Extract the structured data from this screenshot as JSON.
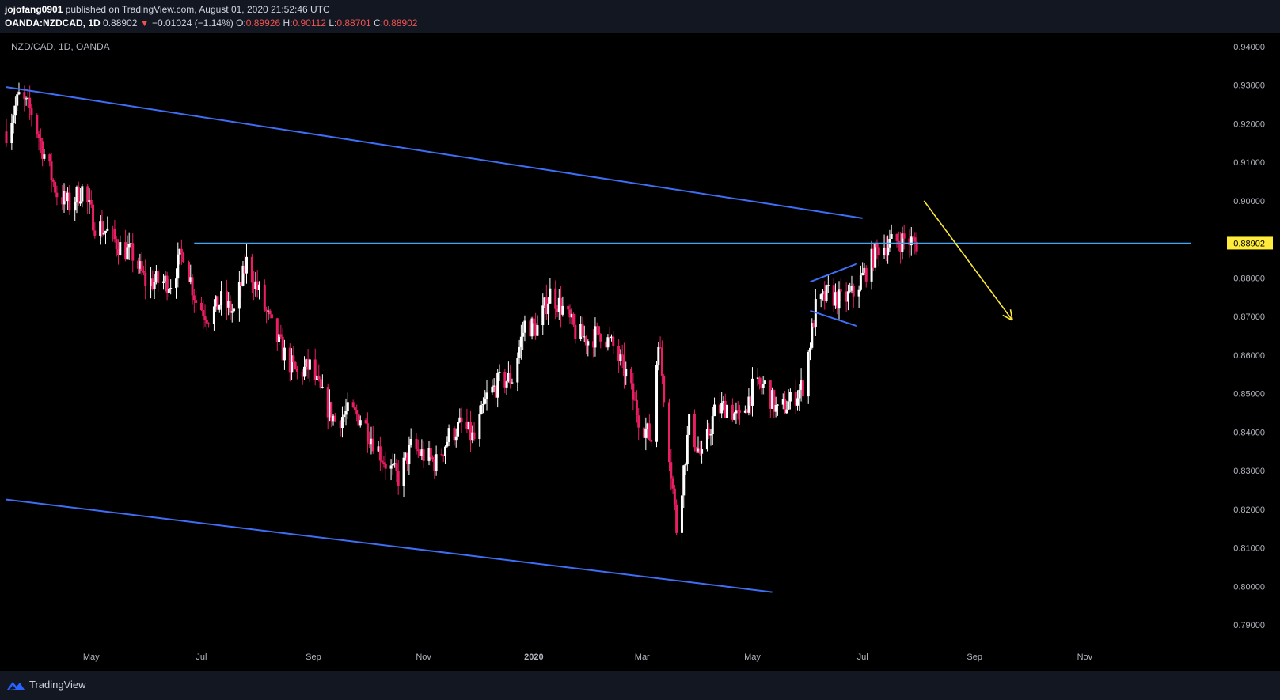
{
  "header": {
    "author": "jojofang0901",
    "published": "published on TradingView.com, August 01, 2020 21:52:46 UTC",
    "symbol": "OANDA:NZDCAD, 1D",
    "last": "0.88902",
    "change_arrow": "▼",
    "change": "−0.01024 (−1.14%)",
    "o_label": "O:",
    "o_value": "0.89926",
    "h_label": "H:",
    "h_value": "0.90112",
    "l_label": "L:",
    "l_value": "0.88701",
    "c_label": "C:",
    "c_value": "0.88902"
  },
  "footer": {
    "brand": "TradingView",
    "logo_icon": "tradingview-logo-icon"
  },
  "colors": {
    "up": "#ffffff",
    "down": "#e91e63",
    "trendline": "#2962ff",
    "hline": "#42a5f5",
    "arrow": "#ffeb3b",
    "price_label_bg": "#ffeb3b"
  },
  "chart_data": {
    "type": "candlestick",
    "title": "NZD/CAD, 1D, OANDA",
    "ylim": [
      0.79,
      0.94
    ],
    "yticks": [
      "0.94000",
      "0.93000",
      "0.92000",
      "0.91000",
      "0.90000",
      "0.88902",
      "0.88000",
      "0.87000",
      "0.86000",
      "0.85000",
      "0.84000",
      "0.83000",
      "0.82000",
      "0.81000",
      "0.80000",
      "0.79000"
    ],
    "current_price": "0.88902",
    "xticks": [
      {
        "label": "May",
        "date": "2019-05-01"
      },
      {
        "label": "Jul",
        "date": "2019-07-01"
      },
      {
        "label": "Sep",
        "date": "2019-09-01"
      },
      {
        "label": "Nov",
        "date": "2019-11-01"
      },
      {
        "label": "2020",
        "date": "2020-01-01"
      },
      {
        "label": "Mar",
        "date": "2020-03-01"
      },
      {
        "label": "May",
        "date": "2020-05-01"
      },
      {
        "label": "Jul",
        "date": "2020-07-01"
      },
      {
        "label": "Sep",
        "date": "2020-09-01"
      },
      {
        "label": "Nov",
        "date": "2020-11-01"
      }
    ],
    "xrange": [
      "2019-03-15",
      "2020-12-30"
    ],
    "price_path": [
      [
        "2019-03-15",
        0.918
      ],
      [
        "2019-03-22",
        0.927
      ],
      [
        "2019-03-29",
        0.923
      ],
      [
        "2019-04-05",
        0.912
      ],
      [
        "2019-04-12",
        0.902
      ],
      [
        "2019-04-19",
        0.899
      ],
      [
        "2019-04-26",
        0.903
      ],
      [
        "2019-05-03",
        0.894
      ],
      [
        "2019-05-10",
        0.892
      ],
      [
        "2019-05-17",
        0.888
      ],
      [
        "2019-05-24",
        0.886
      ],
      [
        "2019-05-31",
        0.879
      ],
      [
        "2019-06-07",
        0.879
      ],
      [
        "2019-06-14",
        0.879
      ],
      [
        "2019-06-21",
        0.887
      ],
      [
        "2019-06-28",
        0.874
      ],
      [
        "2019-07-05",
        0.87
      ],
      [
        "2019-07-12",
        0.874
      ],
      [
        "2019-07-19",
        0.871
      ],
      [
        "2019-07-26",
        0.884
      ],
      [
        "2019-08-02",
        0.876
      ],
      [
        "2019-08-09",
        0.867
      ],
      [
        "2019-08-16",
        0.86
      ],
      [
        "2019-08-23",
        0.855
      ],
      [
        "2019-08-30",
        0.857
      ],
      [
        "2019-09-06",
        0.849
      ],
      [
        "2019-09-13",
        0.843
      ],
      [
        "2019-09-20",
        0.845
      ],
      [
        "2019-09-27",
        0.844
      ],
      [
        "2019-10-04",
        0.838
      ],
      [
        "2019-10-11",
        0.832
      ],
      [
        "2019-10-18",
        0.828
      ],
      [
        "2019-10-25",
        0.836
      ],
      [
        "2019-11-01",
        0.834
      ],
      [
        "2019-11-08",
        0.832
      ],
      [
        "2019-11-15",
        0.839
      ],
      [
        "2019-11-22",
        0.842
      ],
      [
        "2019-11-29",
        0.838
      ],
      [
        "2019-12-06",
        0.849
      ],
      [
        "2019-12-13",
        0.853
      ],
      [
        "2019-12-20",
        0.854
      ],
      [
        "2019-12-27",
        0.868
      ],
      [
        "2020-01-03",
        0.867
      ],
      [
        "2020-01-10",
        0.876
      ],
      [
        "2020-01-17",
        0.872
      ],
      [
        "2020-01-24",
        0.866
      ],
      [
        "2020-01-31",
        0.864
      ],
      [
        "2020-02-07",
        0.866
      ],
      [
        "2020-02-14",
        0.862
      ],
      [
        "2020-02-21",
        0.855
      ],
      [
        "2020-02-28",
        0.844
      ],
      [
        "2020-03-06",
        0.838
      ],
      [
        "2020-03-10",
        0.865
      ],
      [
        "2020-03-13",
        0.85
      ],
      [
        "2020-03-18",
        0.825
      ],
      [
        "2020-03-20",
        0.815
      ],
      [
        "2020-03-27",
        0.842
      ],
      [
        "2020-04-03",
        0.833
      ],
      [
        "2020-04-10",
        0.845
      ],
      [
        "2020-04-17",
        0.847
      ],
      [
        "2020-04-24",
        0.843
      ],
      [
        "2020-05-01",
        0.851
      ],
      [
        "2020-05-08",
        0.852
      ],
      [
        "2020-05-15",
        0.845
      ],
      [
        "2020-05-22",
        0.848
      ],
      [
        "2020-05-29",
        0.852
      ],
      [
        "2020-06-05",
        0.872
      ],
      [
        "2020-06-12",
        0.876
      ],
      [
        "2020-06-19",
        0.874
      ],
      [
        "2020-06-26",
        0.876
      ],
      [
        "2020-07-03",
        0.882
      ],
      [
        "2020-07-10",
        0.888
      ],
      [
        "2020-07-17",
        0.889
      ],
      [
        "2020-07-24",
        0.89
      ],
      [
        "2020-07-31",
        0.889
      ]
    ],
    "drawings": {
      "upper_trendline": [
        [
          "2019-03-15",
          0.9295
        ],
        [
          "2020-07-01",
          0.8955
        ]
      ],
      "lower_trendline": [
        [
          "2019-03-15",
          0.8225
        ],
        [
          "2020-05-12",
          0.7985
        ]
      ],
      "horizontal_line": {
        "from": "2019-06-27",
        "price": 0.88902
      },
      "wedge_upper": [
        [
          "2020-06-02",
          0.879
        ],
        [
          "2020-06-28",
          0.8837
        ]
      ],
      "wedge_lower": [
        [
          "2020-06-02",
          0.8715
        ],
        [
          "2020-06-28",
          0.8675
        ]
      ],
      "projection_arrow": [
        [
          "2020-08-04",
          0.9
        ],
        [
          "2020-09-22",
          0.869
        ]
      ]
    }
  }
}
